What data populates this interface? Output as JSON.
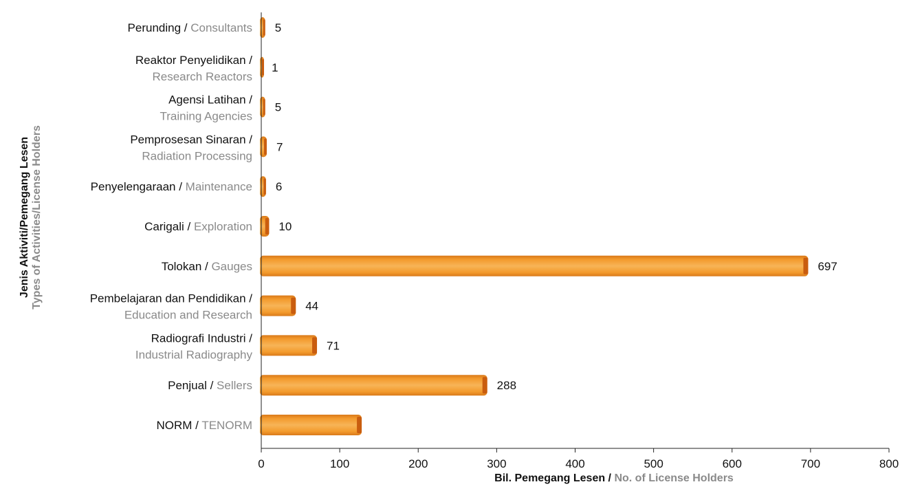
{
  "chart_data": {
    "type": "bar",
    "orientation": "horizontal",
    "categories": [
      {
        "label": "Perunding",
        "sublabel": "Consultants",
        "lines": 1
      },
      {
        "label": "Reaktor Penyelidikan",
        "sublabel": "Research Reactors",
        "lines": 2
      },
      {
        "label": "Agensi Latihan",
        "sublabel": "Training Agencies",
        "lines": 2
      },
      {
        "label": "Pemprosesan Sinaran",
        "sublabel": "Radiation Processing",
        "lines": 2
      },
      {
        "label": "Penyelengaraan",
        "sublabel": "Maintenance",
        "lines": 1
      },
      {
        "label": "Carigali ",
        "sublabel": "Exploration",
        "lines": 1
      },
      {
        "label": "Tolokan",
        "sublabel": "Gauges",
        "lines": 1
      },
      {
        "label": "Pembelajaran dan Pendidikan",
        "sublabel": "Education and Research",
        "lines": 2
      },
      {
        "label": "Radiografi Industri",
        "sublabel": "Industrial Radiography",
        "lines": 2
      },
      {
        "label": "Penjual",
        "sublabel": "Sellers",
        "lines": 1
      },
      {
        "label": "NORM",
        "sublabel": "TENORM",
        "lines": 1
      }
    ],
    "values": [
      5,
      1,
      5,
      7,
      6,
      10,
      697,
      44,
      71,
      288,
      128
    ],
    "data_labels": [
      "5",
      "1",
      "5",
      "7",
      "6",
      "10",
      "697",
      "44",
      "71",
      "288",
      ""
    ],
    "xlim": [
      0,
      800
    ],
    "xticks": [
      0,
      100,
      200,
      300,
      400,
      500,
      600,
      700,
      800
    ],
    "xlabel_main": "Bil. Pemegang Lesen /",
    "xlabel_alt": " No. of License Holders",
    "ylabel_main": "Jenis Aktiviti/Pemegang Lesen",
    "ylabel_alt": "Types of Activities/License Holders",
    "grid": false,
    "colors": {
      "bar_fill": "#f39a2c",
      "bar_dark": "#d9791a",
      "bar_light": "#f7b457",
      "bar_cap": "#c95d0f",
      "label_main": "#111111",
      "label_alt": "#8a8a8a",
      "axis": "#222222"
    }
  }
}
